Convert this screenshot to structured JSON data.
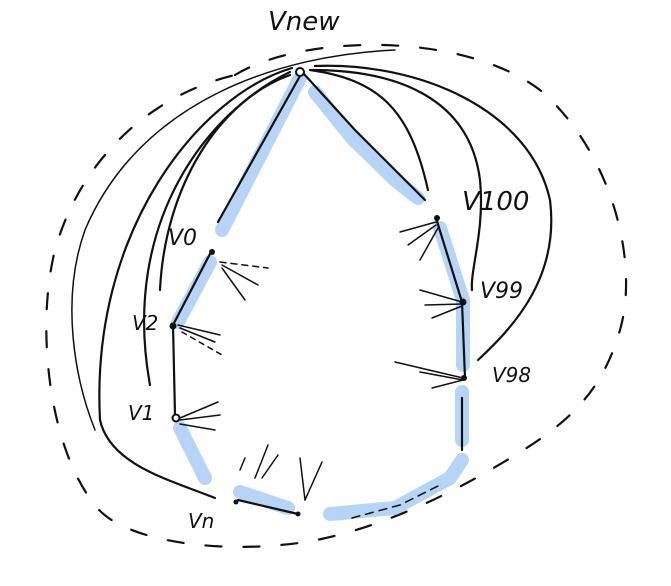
{
  "diagram": {
    "nodes": {
      "v_new": "Vnew",
      "v_100": "V100",
      "v_99": "V99",
      "v_98": "V98",
      "v_0": "V0",
      "v_2": "V2",
      "v_1": "V1",
      "v_n": "Vn"
    },
    "colors": {
      "highlight": "#a9cdf3",
      "ink": "#111111",
      "background": "#ffffff"
    }
  }
}
